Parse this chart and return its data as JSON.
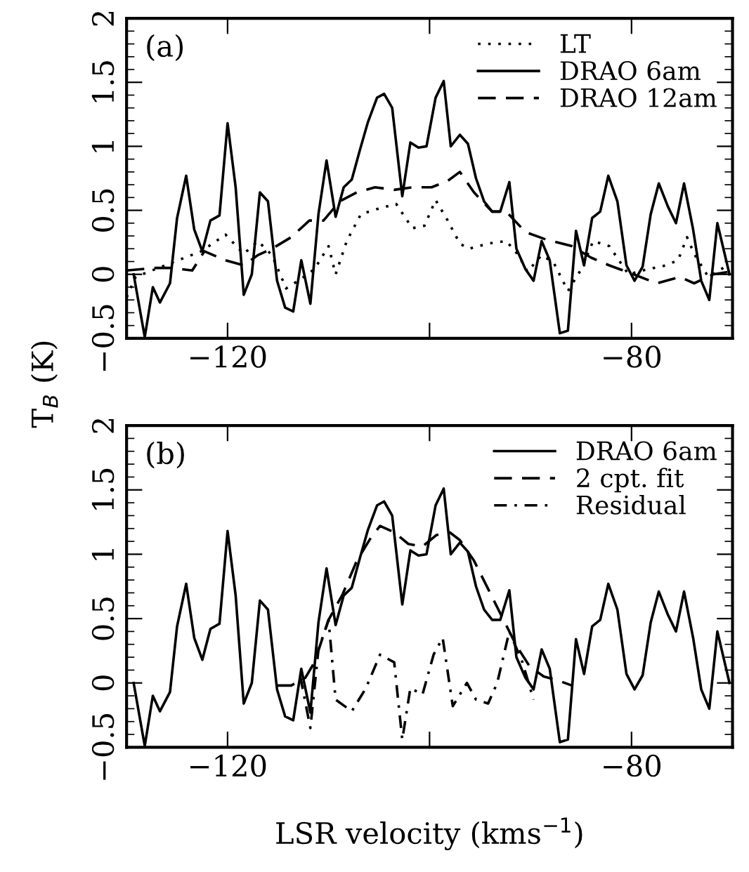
{
  "chart_data": [
    {
      "type": "line",
      "annotations": [
        "(a)"
      ],
      "ylabel": "T$_{B}$ (K)",
      "xlim": [
        -130,
        -70
      ],
      "ylim": [
        -0.5,
        2
      ],
      "xticks": [
        {
          "value": -120,
          "label": "−120"
        },
        {
          "value": -100,
          "label": null
        },
        {
          "value": -80,
          "label": "−80"
        }
      ],
      "yticks": [
        {
          "value": -0.5,
          "label": "−0.5"
        },
        0,
        0.5,
        1,
        1.5,
        2
      ],
      "legend": "top right",
      "grid": false,
      "series": [
        {
          "name": "LT",
          "color": "#000000",
          "line_style": "dotted",
          "x": [
            -130,
            -129.1,
            -124.9,
            -122.6,
            -120.2,
            -118.4,
            -117.0,
            -115.6,
            -114.2,
            -112.8,
            -111.4,
            -110.0,
            -109.3,
            -108.2,
            -106.8,
            -105.2,
            -103.3,
            -101.7,
            -100.5,
            -99.4,
            -98.2,
            -97.0,
            -96.1,
            -94.2,
            -92.4,
            -91.2,
            -90.3,
            -88.9,
            -87.7,
            -86.3,
            -84.9,
            -83.8,
            -82.2,
            -80.3,
            -78.4,
            -76.6,
            -75.4,
            -74.5,
            -73.8,
            -72.4,
            -70.5
          ],
          "values": [
            -0.18,
            -0.02,
            0.11,
            0.18,
            0.31,
            0.16,
            0.26,
            0.15,
            -0.11,
            -0.04,
            0.04,
            0.22,
            0,
            0.26,
            0.47,
            0.51,
            0.55,
            0.36,
            0.38,
            0.58,
            0.42,
            0.24,
            0.2,
            0.24,
            0.26,
            0.15,
            0.02,
            0.15,
            0.09,
            -0.13,
            0.05,
            0.26,
            0.22,
            0,
            0.04,
            0.07,
            0.11,
            0.29,
            0.16,
            -0.02,
            0.07
          ]
        },
        {
          "name": "DRAO 6am",
          "color": "#000000",
          "line_style": "solid",
          "x": [
            -129.3,
            -128.2,
            -127.4,
            -126.7,
            -125.7,
            -125.0,
            -124.1,
            -123.3,
            -122.5,
            -121.7,
            -120.8,
            -120.0,
            -119.2,
            -118.4,
            -117.6,
            -116.8,
            -116.0,
            -115.1,
            -114.3,
            -113.5,
            -112.7,
            -111.8,
            -111.0,
            -110.2,
            -109.3,
            -108.5,
            -107.7,
            -106.9,
            -106.1,
            -105.2,
            -104.5,
            -103.7,
            -102.7,
            -101.9,
            -101.1,
            -100.3,
            -99.4,
            -98.6,
            -97.9,
            -97.0,
            -96.2,
            -95.4,
            -94.6,
            -93.8,
            -93.0,
            -92.1,
            -91.4,
            -90.5,
            -89.7,
            -88.9,
            -88.1,
            -87.1,
            -86.3,
            -85.5,
            -84.7,
            -83.9,
            -83.1,
            -82.3,
            -81.4,
            -80.5,
            -79.7,
            -78.9,
            -78.1,
            -77.3,
            -76.4,
            -75.6,
            -74.8,
            -73.9,
            -73.1,
            -72.3,
            -71.5,
            -70.3
          ],
          "values": [
            0,
            -0.49,
            -0.1,
            -0.22,
            -0.07,
            0.44,
            0.77,
            0.35,
            0.18,
            0.42,
            0.46,
            1.18,
            0.68,
            -0.16,
            0,
            0.64,
            0.57,
            -0.05,
            -0.26,
            -0.29,
            0.11,
            -0.23,
            0.47,
            0.89,
            0.45,
            0.68,
            0.74,
            0.97,
            1.19,
            1.38,
            1.41,
            1.3,
            0.61,
            1.03,
            0.99,
            1.0,
            1.38,
            1.51,
            1.0,
            1.09,
            1.02,
            0.75,
            0.57,
            0.49,
            0.49,
            0.72,
            0.2,
            0.04,
            -0.05,
            0.26,
            0.11,
            -0.46,
            -0.44,
            0.34,
            0.07,
            0.44,
            0.49,
            0.77,
            0.57,
            0.07,
            -0.05,
            0.06,
            0.47,
            0.71,
            0.53,
            0.4,
            0.71,
            0.35,
            -0.05,
            -0.2,
            0.4,
            0
          ]
        },
        {
          "name": "DRAO 12am",
          "color": "#000000",
          "line_style": "dashed",
          "x": [
            -130,
            -127.2,
            -125.6,
            -123.5,
            -122.3,
            -120.2,
            -118.4,
            -117.0,
            -115.6,
            -113.7,
            -111.9,
            -110.5,
            -108.9,
            -107.2,
            -105.4,
            -103.5,
            -101.7,
            -99.8,
            -98.2,
            -97.0,
            -95.6,
            -93.8,
            -92.4,
            -90.5,
            -88.4,
            -85.9,
            -84.0,
            -82.2,
            -79.8,
            -77.5,
            -75.2,
            -73.8,
            -71.9,
            -70.3
          ],
          "values": [
            0.03,
            0.05,
            0.05,
            0.03,
            0.18,
            0.11,
            0.07,
            0.15,
            0.2,
            0.29,
            0.42,
            0.42,
            0.57,
            0.64,
            0.68,
            0.66,
            0.68,
            0.68,
            0.73,
            0.8,
            0.64,
            0.49,
            0.49,
            0.33,
            0.27,
            0.22,
            0.13,
            0.07,
            0,
            -0.07,
            -0.02,
            -0.07,
            0,
            0.02
          ]
        }
      ]
    },
    {
      "type": "line",
      "annotations": [
        "(b)"
      ],
      "xlabel": "LSR velocity (kms$^{−1}$)",
      "xlim": [
        -130,
        -70
      ],
      "ylim": [
        -0.5,
        2
      ],
      "xticks": [
        {
          "value": -120,
          "label": "−120"
        },
        {
          "value": -100,
          "label": null
        },
        {
          "value": -80,
          "label": "−80"
        }
      ],
      "yticks": [
        {
          "value": -0.5,
          "label": "−0.5"
        },
        0,
        0.5,
        1,
        1.5,
        2
      ],
      "legend": "top right",
      "grid": false,
      "series": [
        {
          "name": "DRAO 6am",
          "color": "#000000",
          "line_style": "solid",
          "x": [
            -129.3,
            -128.2,
            -127.4,
            -126.7,
            -125.7,
            -125.0,
            -124.1,
            -123.3,
            -122.5,
            -121.7,
            -120.8,
            -120.0,
            -119.2,
            -118.4,
            -117.6,
            -116.8,
            -116.0,
            -115.1,
            -114.3,
            -113.5,
            -112.7,
            -111.8,
            -111.0,
            -110.2,
            -109.3,
            -108.5,
            -107.7,
            -106.9,
            -106.1,
            -105.2,
            -104.5,
            -103.7,
            -102.7,
            -101.9,
            -101.1,
            -100.3,
            -99.4,
            -98.6,
            -97.9,
            -97.0,
            -96.2,
            -95.4,
            -94.6,
            -93.8,
            -93.0,
            -92.1,
            -91.4,
            -90.5,
            -89.7,
            -88.9,
            -88.1,
            -87.1,
            -86.3,
            -85.5,
            -84.7,
            -83.9,
            -83.1,
            -82.3,
            -81.4,
            -80.5,
            -79.7,
            -78.9,
            -78.1,
            -77.3,
            -76.4,
            -75.6,
            -74.8,
            -73.9,
            -73.1,
            -72.3,
            -71.5,
            -70.3
          ],
          "values": [
            0,
            -0.49,
            -0.1,
            -0.22,
            -0.07,
            0.44,
            0.77,
            0.35,
            0.18,
            0.42,
            0.46,
            1.18,
            0.68,
            -0.16,
            0,
            0.64,
            0.57,
            -0.05,
            -0.26,
            -0.29,
            0.11,
            -0.23,
            0.47,
            0.89,
            0.45,
            0.68,
            0.74,
            0.97,
            1.19,
            1.38,
            1.41,
            1.3,
            0.61,
            1.03,
            0.99,
            1.0,
            1.38,
            1.51,
            1.0,
            1.09,
            1.02,
            0.75,
            0.57,
            0.49,
            0.49,
            0.72,
            0.2,
            0.04,
            -0.05,
            0.26,
            0.11,
            -0.46,
            -0.44,
            0.34,
            0.07,
            0.44,
            0.49,
            0.77,
            0.57,
            0.07,
            -0.05,
            0.06,
            0.47,
            0.71,
            0.53,
            0.4,
            0.71,
            0.35,
            -0.05,
            -0.2,
            0.4,
            0
          ]
        },
        {
          "name": "2 cpt. fit",
          "color": "#000000",
          "line_style": "dashed",
          "x": [
            -115.1,
            -113.7,
            -112.3,
            -111.4,
            -110.0,
            -108.6,
            -107.2,
            -105.8,
            -104.9,
            -103.5,
            -102.1,
            -100.7,
            -99.3,
            -98.0,
            -97.0,
            -95.6,
            -94.2,
            -92.8,
            -91.4,
            -90.1,
            -88.7,
            -87.3,
            -85.9
          ],
          "values": [
            -0.02,
            -0.02,
            0.04,
            0.16,
            0.49,
            0.69,
            0.95,
            1.13,
            1.22,
            1.17,
            1.08,
            1.06,
            1.15,
            1.17,
            1.11,
            0.95,
            0.73,
            0.51,
            0.29,
            0.13,
            0.05,
            0.02,
            -0.02
          ]
        },
        {
          "name": "Residual",
          "color": "#000000",
          "line_style": "dashdot",
          "x": [
            -112.8,
            -111.8,
            -111.0,
            -110.0,
            -109.3,
            -107.7,
            -106.3,
            -104.9,
            -103.5,
            -102.7,
            -101.9,
            -100.7,
            -99.6,
            -98.7,
            -97.7,
            -96.3,
            -95.4,
            -94.2,
            -93.3,
            -92.1,
            -90.8,
            -89.7
          ],
          "values": [
            0.05,
            -0.35,
            0.26,
            0.49,
            -0.13,
            -0.22,
            -0.04,
            0.22,
            0.16,
            -0.44,
            -0.04,
            -0.09,
            0.22,
            0.35,
            -0.18,
            0,
            -0.13,
            -0.16,
            0,
            0.4,
            0.16,
            -0.13
          ]
        }
      ]
    }
  ]
}
